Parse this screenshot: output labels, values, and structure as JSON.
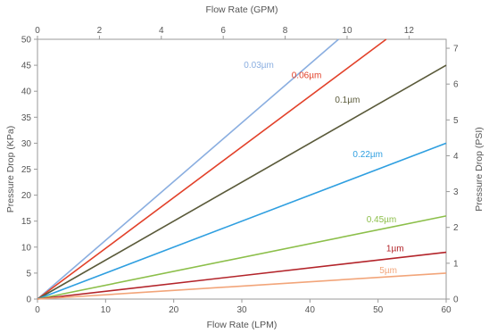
{
  "chart_data": {
    "type": "line",
    "x_bottom": {
      "label": "Flow Rate (LPM)",
      "range": [
        0,
        60
      ],
      "ticks": [
        "0",
        "10",
        "20",
        "30",
        "40",
        "50",
        "60"
      ]
    },
    "x_top": {
      "label": "Flow Rate (GPM)",
      "range": [
        0,
        13.2
      ],
      "ticks": [
        "0",
        "2",
        "4",
        "6",
        "8",
        "10",
        "12"
      ]
    },
    "y_left": {
      "label": "Pressure Drop (KPa)",
      "range": [
        0,
        50
      ],
      "ticks": [
        "0",
        "5",
        "10",
        "15",
        "20",
        "25",
        "30",
        "35",
        "40",
        "45",
        "50"
      ]
    },
    "y_right": {
      "label": "Pressure Drop (PSI)",
      "range": [
        0,
        7.25
      ],
      "ticks": [
        "0",
        "1",
        "2",
        "3",
        "4",
        "5",
        "6",
        "7"
      ]
    },
    "grid": false,
    "series": [
      {
        "name": "0.03µm",
        "color": "#8aaee0",
        "x": [
          0,
          44.2
        ],
        "y": [
          0,
          50
        ]
      },
      {
        "name": "0.06µm",
        "color": "#e2412a",
        "x": [
          0,
          51.2
        ],
        "y": [
          0,
          50
        ]
      },
      {
        "name": "0.1µm",
        "color": "#5a5a3a",
        "x": [
          0,
          60
        ],
        "y": [
          0,
          45
        ]
      },
      {
        "name": "0.22µm",
        "color": "#2f9fe0",
        "x": [
          0,
          60
        ],
        "y": [
          0,
          30
        ]
      },
      {
        "name": "0.45µm",
        "color": "#8cbf4a",
        "x": [
          0,
          60
        ],
        "y": [
          0,
          16
        ]
      },
      {
        "name": "1µm",
        "color": "#b3242a",
        "x": [
          0,
          60
        ],
        "y": [
          0,
          9
        ]
      },
      {
        "name": "5µm",
        "color": "#f2a57a",
        "x": [
          0,
          60
        ],
        "y": [
          0,
          5
        ]
      }
    ],
    "label_points": [
      {
        "x": 32.5,
        "y": 44.5
      },
      {
        "x": 39.5,
        "y": 42.5
      },
      {
        "x": 45.5,
        "y": 37.8
      },
      {
        "x": 48.5,
        "y": 27.3
      },
      {
        "x": 50.5,
        "y": 14.8
      },
      {
        "x": 52.5,
        "y": 9.2
      },
      {
        "x": 51.5,
        "y": 5.0
      }
    ]
  }
}
